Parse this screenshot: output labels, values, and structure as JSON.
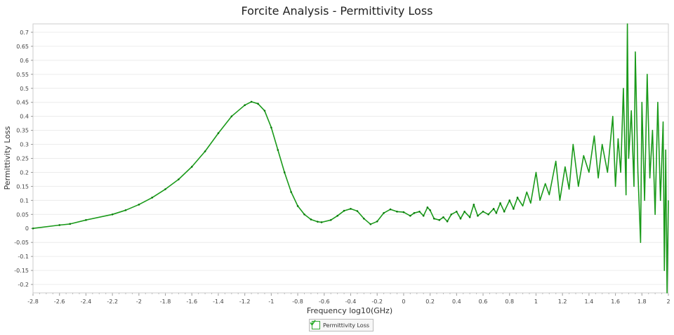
{
  "chart_data": {
    "type": "line",
    "title": "Forcite Analysis - Permittivity Loss",
    "xlabel": "Frequency log10(GHz)",
    "ylabel": "Permittivity Loss",
    "xlim": [
      -2.8,
      2.0
    ],
    "ylim": [
      -0.23,
      0.73
    ],
    "grid": true,
    "legend_placement": "bottom-center",
    "xticks": [
      "-2.8",
      "-2.6",
      "-2.4",
      "-2.2",
      "-2",
      "-1.8",
      "-1.6",
      "-1.4",
      "-1.2",
      "-1",
      "-0.8",
      "-0.6",
      "-0.4",
      "-0.2",
      "0",
      "0.2",
      "0.4",
      "0.6",
      "0.8",
      "1",
      "1.2",
      "1.4",
      "1.6",
      "1.8",
      "2"
    ],
    "yticks": [
      "-0.2",
      "-0.15",
      "-0.1",
      "-0.05",
      "0",
      "0.05",
      "0.1",
      "0.15",
      "0.2",
      "0.25",
      "0.3",
      "0.35",
      "0.4",
      "0.45",
      "0.5",
      "0.55",
      "0.6",
      "0.65",
      "0.7"
    ],
    "series": [
      {
        "name": "Permittivity Loss",
        "color": "#1a9a1a",
        "x": [
          -2.8,
          -2.6,
          -2.52,
          -2.4,
          -2.2,
          -2.1,
          -2.0,
          -1.9,
          -1.8,
          -1.7,
          -1.6,
          -1.5,
          -1.4,
          -1.3,
          -1.2,
          -1.15,
          -1.1,
          -1.05,
          -1.0,
          -0.95,
          -0.9,
          -0.85,
          -0.8,
          -0.75,
          -0.7,
          -0.65,
          -0.62,
          -0.55,
          -0.5,
          -0.45,
          -0.4,
          -0.35,
          -0.3,
          -0.25,
          -0.2,
          -0.15,
          -0.1,
          -0.05,
          0,
          0.05,
          0.08,
          0.12,
          0.15,
          0.18,
          0.2,
          0.23,
          0.27,
          0.3,
          0.33,
          0.36,
          0.4,
          0.43,
          0.46,
          0.5,
          0.53,
          0.56,
          0.6,
          0.64,
          0.68,
          0.7,
          0.73,
          0.76,
          0.8,
          0.83,
          0.86,
          0.9,
          0.93,
          0.96,
          1.0,
          1.03,
          1.07,
          1.1,
          1.15,
          1.18,
          1.22,
          1.25,
          1.28,
          1.32,
          1.36,
          1.4,
          1.44,
          1.47,
          1.5,
          1.54,
          1.58,
          1.6,
          1.62,
          1.64,
          1.66,
          1.68,
          1.69,
          1.7,
          1.72,
          1.74,
          1.75,
          1.77,
          1.79,
          1.8,
          1.82,
          1.84,
          1.86,
          1.88,
          1.9,
          1.92,
          1.94,
          1.96,
          1.97,
          1.98,
          1.99,
          2.0
        ],
        "y": [
          0,
          0.012,
          0.016,
          0.03,
          0.05,
          0.065,
          0.085,
          0.11,
          0.14,
          0.175,
          0.22,
          0.275,
          0.34,
          0.4,
          0.44,
          0.452,
          0.445,
          0.42,
          0.36,
          0.28,
          0.2,
          0.13,
          0.08,
          0.05,
          0.032,
          0.024,
          0.022,
          0.03,
          0.045,
          0.063,
          0.07,
          0.062,
          0.035,
          0.015,
          0.025,
          0.055,
          0.068,
          0.06,
          0.058,
          0.045,
          0.055,
          0.06,
          0.045,
          0.075,
          0.065,
          0.035,
          0.03,
          0.04,
          0.025,
          0.05,
          0.06,
          0.035,
          0.06,
          0.04,
          0.085,
          0.045,
          0.06,
          0.05,
          0.07,
          0.055,
          0.09,
          0.06,
          0.1,
          0.07,
          0.11,
          0.08,
          0.13,
          0.09,
          0.2,
          0.1,
          0.16,
          0.12,
          0.24,
          0.1,
          0.22,
          0.14,
          0.3,
          0.15,
          0.26,
          0.2,
          0.33,
          0.18,
          0.3,
          0.2,
          0.4,
          0.15,
          0.32,
          0.2,
          0.5,
          0.12,
          0.73,
          0.25,
          0.42,
          0.15,
          0.63,
          0.2,
          -0.05,
          0.45,
          0.1,
          0.55,
          0.18,
          0.35,
          0.05,
          0.45,
          0.1,
          0.38,
          -0.15,
          0.28,
          -0.23,
          0.1
        ]
      }
    ]
  }
}
